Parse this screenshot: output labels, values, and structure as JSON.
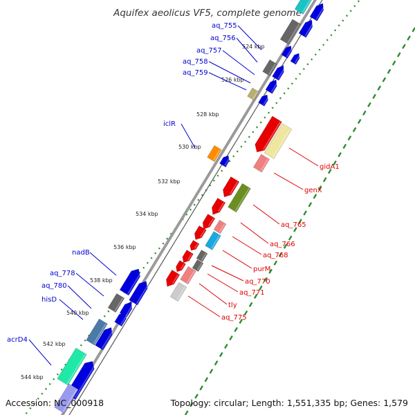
{
  "title": "Aquifex aeolicus VF5, complete genome",
  "footer": {
    "accession": "Accession: NC_000918",
    "topology": "Topology: circular; Length: 1,551,335 bp; Genes: 1,579"
  },
  "colors": {
    "forward_label": "#0000cc",
    "reverse_label": "#dd0000",
    "backbone": "#9a9a9a",
    "dotted_track": "#2e8b2e"
  },
  "ticks": [
    "524 kbp",
    "526 kbp",
    "528 kbp",
    "530 kbp",
    "532 kbp",
    "534 kbp",
    "536 kbp",
    "538 kbp",
    "540 kbp",
    "542 kbp",
    "544 kbp"
  ],
  "left_labels": [
    "aq_755",
    "aq_756",
    "aq_757",
    "aq_758",
    "aq_759",
    "iclR",
    "nadB",
    "aq_778",
    "aq_780",
    "hisD",
    "acrD4"
  ],
  "right_labels": [
    "gidA1",
    "genX",
    "aq_765",
    "aq_766",
    "aq_768",
    "purM",
    "aq_770",
    "aq_771",
    "tly",
    "aq_775"
  ]
}
